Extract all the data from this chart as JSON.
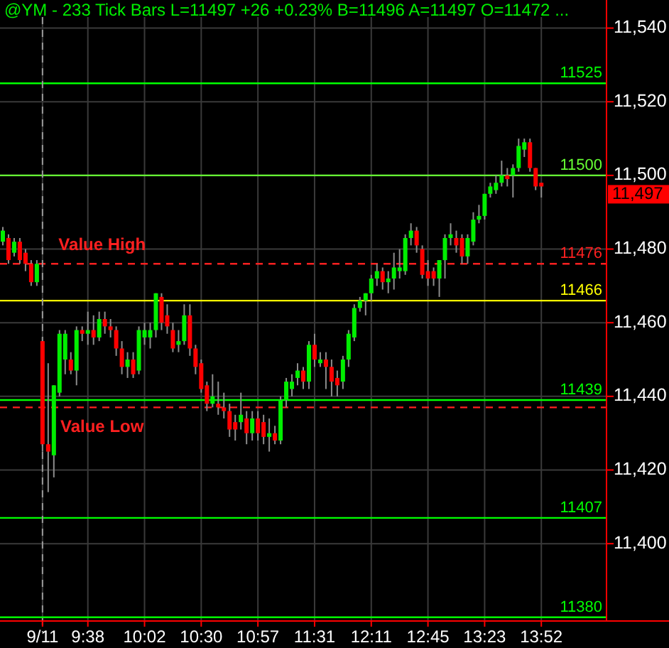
{
  "chart_data": {
    "type": "candlestick",
    "title": "@YM - 233 Tick Bars  L=11497  +26  +0.23%  B=11496  A=11497  O=11472  ...",
    "categories": [
      null,
      null,
      null,
      null,
      null,
      null,
      null,
      "9/11",
      null,
      null,
      null,
      null,
      null,
      null,
      null,
      "9:38",
      null,
      null,
      null,
      null,
      null,
      null,
      null,
      null,
      null,
      "10:02",
      null,
      null,
      null,
      null,
      null,
      null,
      null,
      null,
      null,
      "10:30",
      null,
      null,
      null,
      null,
      null,
      null,
      null,
      null,
      null,
      "10:57",
      null,
      null,
      null,
      null,
      null,
      null,
      null,
      null,
      null,
      "11:31",
      null,
      null,
      null,
      null,
      null,
      null,
      null,
      null,
      null,
      "12:11",
      null,
      null,
      null,
      null,
      null,
      null,
      null,
      null,
      null,
      "12:45",
      null,
      null,
      null,
      null,
      null,
      null,
      null,
      null,
      null,
      "13:23",
      null,
      null,
      null,
      null,
      null,
      null,
      null,
      null,
      null,
      "13:52"
    ],
    "ohlc": [
      [
        11482,
        11486,
        11481,
        11485
      ],
      [
        11483,
        11484,
        11476,
        11477
      ],
      [
        11479,
        11483,
        11478,
        11482
      ],
      [
        11482,
        11483,
        11476,
        11477
      ],
      [
        11479,
        11480,
        11474,
        11476
      ],
      [
        11476,
        11477,
        11470,
        11471
      ],
      [
        11471,
        11477,
        11470,
        11476
      ],
      [
        11455,
        11456,
        11425,
        11427
      ],
      [
        11427,
        11449,
        11414,
        11425
      ],
      [
        11424,
        11443,
        11418,
        11443
      ],
      [
        11441,
        11458,
        11440,
        11457
      ],
      [
        11450,
        11458,
        11446,
        11457
      ],
      [
        11450,
        11452,
        11446,
        11447
      ],
      [
        11447,
        11459,
        11443,
        11458
      ],
      [
        11458,
        11459,
        11455,
        11457
      ],
      [
        11457,
        11463,
        11454,
        11458
      ],
      [
        11458,
        11462,
        11454,
        11456
      ],
      [
        11456,
        11463,
        11455,
        11461
      ],
      [
        11461,
        11463,
        11457,
        11459
      ],
      [
        11459,
        11461,
        11456,
        11458
      ],
      [
        11458,
        11459,
        11451,
        11453
      ],
      [
        11453,
        11455,
        11446,
        11448
      ],
      [
        11448,
        11452,
        11445,
        11450
      ],
      [
        11450,
        11452,
        11445,
        11446
      ],
      [
        11447,
        11459,
        11446,
        11458
      ],
      [
        11456,
        11460,
        11454,
        11458
      ],
      [
        11456,
        11460,
        11453,
        11458
      ],
      [
        11458,
        11468,
        11456,
        11468
      ],
      [
        11467,
        11468,
        11458,
        11460
      ],
      [
        11462,
        11465,
        11457,
        11459
      ],
      [
        11458,
        11460,
        11452,
        11453
      ],
      [
        11454,
        11458,
        11452,
        11455
      ],
      [
        11455,
        11465,
        11454,
        11462
      ],
      [
        11462,
        11465,
        11451,
        11453
      ],
      [
        11453,
        11454,
        11446,
        11448
      ],
      [
        11449,
        11450,
        11441,
        11442
      ],
      [
        11443,
        11444,
        11436,
        11438
      ],
      [
        11438,
        11446,
        11437,
        11440
      ],
      [
        11438,
        11444,
        11435,
        11437
      ],
      [
        11437,
        11441,
        11434,
        11436
      ],
      [
        11436,
        11438,
        11429,
        11431
      ],
      [
        11433,
        11435,
        11428,
        11431
      ],
      [
        11433,
        11441,
        11431,
        11435
      ],
      [
        11434,
        11436,
        11427,
        11430
      ],
      [
        11430,
        11436,
        11428,
        11434
      ],
      [
        11434,
        11436,
        11428,
        11430
      ],
      [
        11433,
        11435,
        11427,
        11429
      ],
      [
        11429,
        11434,
        11425,
        11430
      ],
      [
        11430,
        11432,
        11427,
        11428
      ],
      [
        11428,
        11440,
        11427,
        11439
      ],
      [
        11439,
        11445,
        11437,
        11444
      ],
      [
        11442,
        11446,
        11440,
        11444
      ],
      [
        11445,
        11449,
        11443,
        11447
      ],
      [
        11447,
        11448,
        11442,
        11444
      ],
      [
        11444,
        11455,
        11442,
        11454
      ],
      [
        11454,
        11457,
        11448,
        11450
      ],
      [
        11449,
        11452,
        11448,
        11450
      ],
      [
        11450,
        11452,
        11442,
        11448
      ],
      [
        11448,
        11450,
        11440,
        11444
      ],
      [
        11445,
        11447,
        11440,
        11443
      ],
      [
        11444,
        11451,
        11442,
        11450
      ],
      [
        11450,
        11458,
        11448,
        11457
      ],
      [
        11456,
        11465,
        11455,
        11464
      ],
      [
        11464,
        11467,
        11463,
        11466
      ],
      [
        11466,
        11468,
        11462,
        11468
      ],
      [
        11468,
        11473,
        11466,
        11472
      ],
      [
        11472,
        11476,
        11470,
        11474
      ],
      [
        11474,
        11475,
        11469,
        11471
      ],
      [
        11471,
        11474,
        11468,
        11472
      ],
      [
        11472,
        11479,
        11469,
        11475
      ],
      [
        11474,
        11480,
        11472,
        11475
      ],
      [
        11474,
        11484,
        11473,
        11483
      ],
      [
        11483,
        11487,
        11481,
        11485
      ],
      [
        11485,
        11486,
        11479,
        11481
      ],
      [
        11480,
        11481,
        11472,
        11473
      ],
      [
        11474,
        11477,
        11470,
        11472
      ],
      [
        11474,
        11475,
        11470,
        11472
      ],
      [
        11472,
        11477,
        11467,
        11477
      ],
      [
        11477,
        11484,
        11472,
        11483
      ],
      [
        11483,
        11487,
        11481,
        11484
      ],
      [
        11483,
        11485,
        11479,
        11481
      ],
      [
        11483,
        11484,
        11476,
        11478
      ],
      [
        11478,
        11484,
        11476,
        11483
      ],
      [
        11482,
        11490,
        11481,
        11488
      ],
      [
        11488,
        11492,
        11487,
        11489
      ],
      [
        11489,
        11495,
        11488,
        11495
      ],
      [
        11495,
        11498,
        11494,
        11497
      ],
      [
        11496,
        11500,
        11495,
        11498
      ],
      [
        11498,
        11504,
        11497,
        11500
      ],
      [
        11500,
        11502,
        11497,
        11499
      ],
      [
        11500,
        11503,
        11494,
        11502
      ],
      [
        11502,
        11510,
        11501,
        11508
      ],
      [
        11507,
        11510,
        11505,
        11509
      ],
      [
        11509,
        11510,
        11501,
        11502
      ],
      [
        11502,
        11502,
        11496,
        11497
      ],
      [
        11498,
        11498,
        11494,
        11497
      ]
    ],
    "colors": [
      "#00ee00",
      "#ff0000",
      "#00ee00",
      "#ff0000",
      "#ff0000",
      "#ff0000",
      "#00ee00",
      "#ff0000",
      "#ff0000",
      "#00ee00",
      "#00ee00",
      "#00ee00",
      "#ff0000",
      "#00ee00",
      "#ff0000",
      "#00ee00",
      "#ff0000",
      "#00ee00",
      "#ff0000",
      "#ff0000",
      "#ff0000",
      "#ff0000",
      "#00ee00",
      "#ff0000",
      "#00ee00",
      "#00ee00",
      "#00ee00",
      "#00ee00",
      "#ff0000",
      "#ff0000",
      "#ff0000",
      "#00ee00",
      "#00ee00",
      "#ff0000",
      "#ff0000",
      "#ff0000",
      "#ff0000",
      "#00ee00",
      "#ff0000",
      "#ff0000",
      "#ff0000",
      "#ff0000",
      "#00ee00",
      "#ff0000",
      "#00ee00",
      "#ff0000",
      "#ff0000",
      "#00ee00",
      "#ff0000",
      "#00ee00",
      "#00ee00",
      "#00ee00",
      "#00ee00",
      "#ff0000",
      "#00ee00",
      "#ff0000",
      "#00ee00",
      "#ff0000",
      "#ff0000",
      "#ff0000",
      "#00ee00",
      "#00ee00",
      "#00ee00",
      "#00ee00",
      "#00ee00",
      "#00ee00",
      "#00ee00",
      "#ff0000",
      "#00ee00",
      "#00ee00",
      "#00ee00",
      "#00ee00",
      "#00ee00",
      "#ff0000",
      "#ff0000",
      "#ff0000",
      "#ff0000",
      "#00ee00",
      "#00ee00",
      "#00ee00",
      "#ff0000",
      "#ff0000",
      "#00ee00",
      "#00ee00",
      "#00ee00",
      "#00ee00",
      "#00ee00",
      "#00ee00",
      "#00ee00",
      "#ff0000",
      "#00ee00",
      "#00ee00",
      "#00ee00",
      "#ff0000",
      "#ff0000",
      "#ff0000"
    ],
    "ylim": [
      11379,
      11543
    ],
    "yticks": [
      {
        "value": 11400,
        "label": "11,400"
      },
      {
        "value": 11420,
        "label": "11,420"
      },
      {
        "value": 11440,
        "label": "11,440"
      },
      {
        "value": 11460,
        "label": "11,460"
      },
      {
        "value": 11480,
        "label": "11,480"
      },
      {
        "value": 11500,
        "label": "11,500"
      },
      {
        "value": 11520,
        "label": "11,520"
      },
      {
        "value": 11540,
        "label": "11,540"
      }
    ],
    "grid": true,
    "ref_lines": [
      {
        "axis": "y",
        "value": 11525,
        "label": "11525",
        "color": "#00ff00",
        "line_style": "solid"
      },
      {
        "axis": "y",
        "value": 11500,
        "label": "11500",
        "color": "#66ff33",
        "line_style": "solid"
      },
      {
        "axis": "y",
        "value": 11476,
        "label": "11476",
        "color": "#ff2020",
        "line_style": "dashed"
      },
      {
        "axis": "y",
        "value": 11466,
        "label": "11466",
        "color": "#ffff00",
        "line_style": "solid"
      },
      {
        "axis": "y",
        "value": 11439,
        "label": "11439",
        "color": "#00ff00",
        "line_style": "solid"
      },
      {
        "axis": "y",
        "value": 11437,
        "label": null,
        "color": "#ff2020",
        "line_style": "dashed"
      },
      {
        "axis": "y",
        "value": 11407,
        "label": "11407",
        "color": "#00ff00",
        "line_style": "solid"
      },
      {
        "axis": "y",
        "value": 11380,
        "label": "11380",
        "color": "#00ff00",
        "line_style": "solid"
      },
      {
        "axis": "x",
        "value": "9/11",
        "label": null,
        "color": "#999999",
        "line_style": "dashed"
      }
    ],
    "annotations": [
      {
        "text": "Value High",
        "x": "9:38",
        "y": 11476
      },
      {
        "text": "Value Low",
        "x": "9:38",
        "y": 11437
      },
      "11,497"
    ]
  }
}
